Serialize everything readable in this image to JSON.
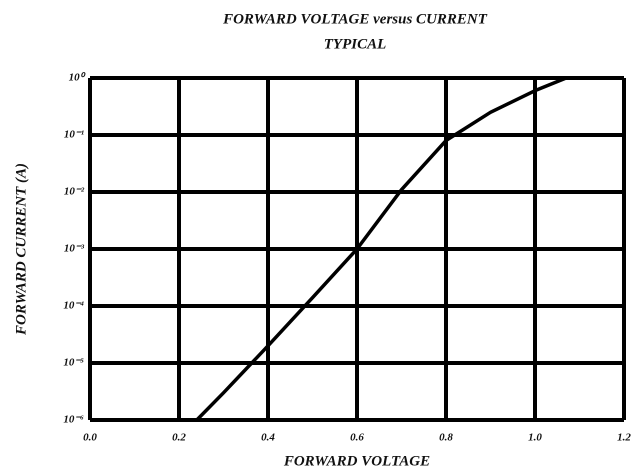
{
  "chart_data": {
    "type": "line",
    "title": "FORWARD VOLTAGE versus CURRENT",
    "subtitle": "TYPICAL",
    "x_label": "FORWARD VOLTAGE",
    "y_label": "FORWARD CURRENT (A)",
    "x": [
      0.24,
      0.3,
      0.4,
      0.5,
      0.6,
      0.7,
      0.8,
      0.9,
      1.0,
      1.07
    ],
    "values": [
      1e-06,
      3e-06,
      2e-05,
      0.00014,
      0.001,
      0.011,
      0.08,
      0.25,
      0.6,
      1
    ],
    "color": "#000000",
    "xlim": [
      0,
      1.2
    ],
    "xticks": [
      {
        "value": 0,
        "label": "0.0"
      },
      0.2,
      0.4,
      0.6,
      0.8,
      {
        "value": 1,
        "label": "1.0"
      },
      1.2
    ],
    "ylim": [
      1e-06,
      1
    ],
    "yticks": [
      {
        "value": 1,
        "label": "10⁰"
      },
      {
        "value": 0.1,
        "label": "10⁻¹"
      },
      {
        "value": 0.01,
        "label": "10⁻²"
      },
      {
        "value": 0.001,
        "label": "10⁻³"
      },
      {
        "value": 0.0001,
        "label": "10⁻⁴"
      },
      {
        "value": 1e-05,
        "label": "10⁻⁵"
      },
      {
        "value": 1e-06,
        "label": "10⁻⁶"
      }
    ],
    "log_y": true,
    "grid": true
  }
}
